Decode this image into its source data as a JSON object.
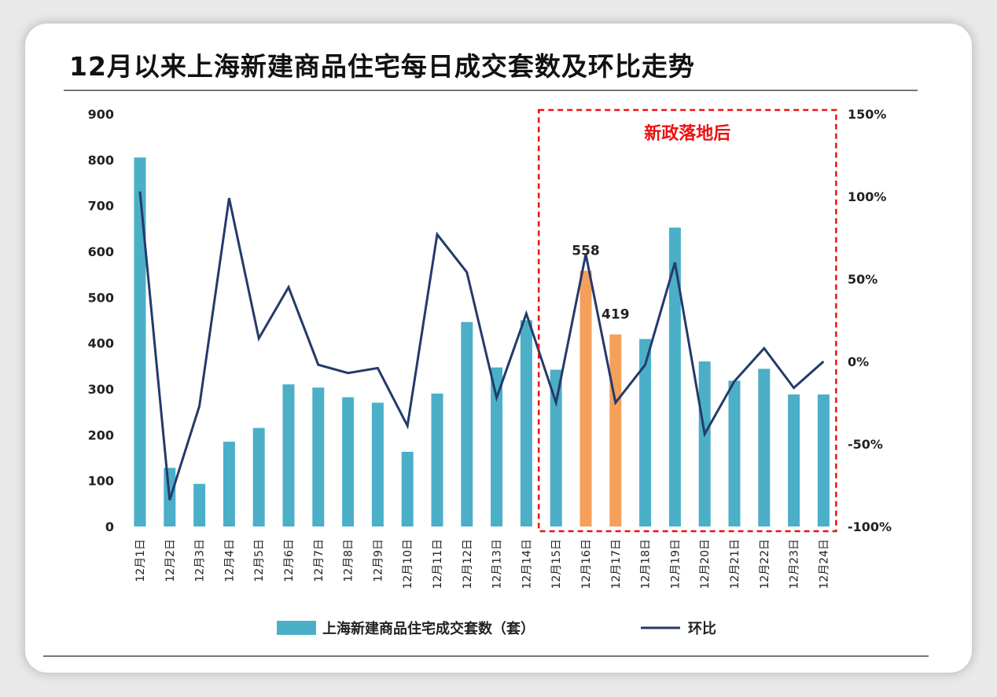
{
  "chart_data": {
    "type": "bar",
    "title": "12月以来上海新建商品住宅每日成交套数及环比走势",
    "categories": [
      "12月1日",
      "12月2日",
      "12月3日",
      "12月4日",
      "12月5日",
      "12月6日",
      "12月7日",
      "12月8日",
      "12月9日",
      "12月10日",
      "12月11日",
      "12月12日",
      "12月13日",
      "12月14日",
      "12月15日",
      "12月16日",
      "12月17日",
      "12月18日",
      "12月19日",
      "12月20日",
      "12月21日",
      "12月22日",
      "12月23日",
      "12月24日"
    ],
    "series": [
      {
        "name": "上海新建商品住宅成交套数（套）",
        "type": "bar",
        "axis": "left",
        "color": "#4bafc8",
        "highlight_color": "#f5a05a",
        "highlight_indices": [
          15,
          16
        ],
        "values": [
          805,
          128,
          93,
          185,
          215,
          310,
          303,
          282,
          270,
          163,
          290,
          446,
          347,
          450,
          342,
          558,
          419,
          409,
          652,
          360,
          318,
          344,
          288,
          288
        ]
      },
      {
        "name": "环比",
        "type": "line",
        "axis": "right",
        "color": "#253a6b",
        "values": [
          103,
          -84,
          -27,
          99,
          14,
          45,
          -2,
          -7,
          -4,
          -39,
          77,
          54,
          -22,
          29,
          -25,
          65,
          -25,
          -2,
          60,
          -44,
          -12,
          8,
          -16,
          0
        ]
      }
    ],
    "y_left": {
      "min": 0,
      "max": 900,
      "ticks": [
        "0",
        "100",
        "200",
        "300",
        "400",
        "500",
        "600",
        "700",
        "800",
        "900"
      ]
    },
    "y_right": {
      "min": -100,
      "max": 150,
      "ticks": [
        "-100%",
        "-50%",
        "0%",
        "50%",
        "100%",
        "150%"
      ]
    },
    "data_labels": [
      {
        "index": 15,
        "text": "558"
      },
      {
        "index": 16,
        "text": "419"
      }
    ],
    "annotation": {
      "text": "新政落地后",
      "from_index": 14,
      "to_index": 23,
      "style": "dashed-box",
      "color": "#ee1111"
    },
    "legend_position": "bottom",
    "grid": false
  }
}
